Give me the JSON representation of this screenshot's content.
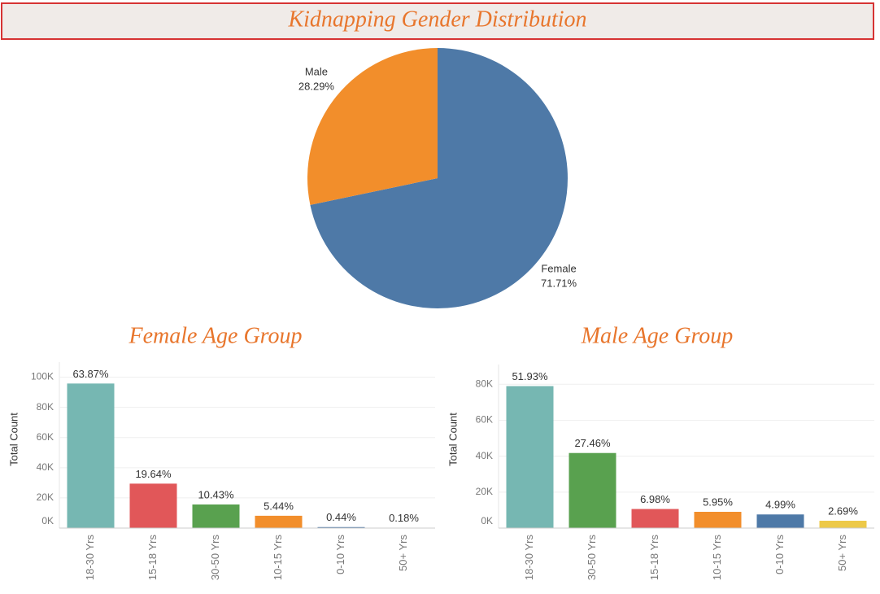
{
  "chart_data": [
    {
      "type": "pie",
      "title": "Kidnapping Gender Distribution",
      "categories": [
        "Female",
        "Male"
      ],
      "values": [
        71.71,
        28.29
      ],
      "value_labels": [
        "71.71%",
        "28.29%"
      ],
      "colors": [
        "#4e79a7",
        "#f28e2b"
      ]
    },
    {
      "type": "bar",
      "title": "Female Age Group",
      "y_label": "Total Count",
      "categories": [
        "18-30 Yrs",
        "15-18 Yrs",
        "30-50 Yrs",
        "10-15 Yrs",
        "0-10 Yrs",
        "50+ Yrs"
      ],
      "values": [
        95800,
        29460,
        15650,
        8160,
        660,
        270
      ],
      "labels": [
        "63.87%",
        "19.64%",
        "10.43%",
        "5.44%",
        "0.44%",
        "0.18%"
      ],
      "colors": [
        "#76b7b2",
        "#e15759",
        "#59a14f",
        "#f28e2b",
        "#4e79a7",
        "#edc948"
      ],
      "ylim": [
        0,
        110000
      ],
      "yticks": [
        {
          "value": 0,
          "label": "0K"
        },
        {
          "value": 20000,
          "label": "20K"
        },
        {
          "value": 40000,
          "label": "40K"
        },
        {
          "value": 60000,
          "label": "60K"
        },
        {
          "value": 80000,
          "label": "80K"
        },
        {
          "value": 100000,
          "label": "100K"
        }
      ],
      "grid": true
    },
    {
      "type": "bar",
      "title": "Male Age Group",
      "y_label": "Total Count",
      "categories": [
        "18-30 Yrs",
        "30-50 Yrs",
        "15-18 Yrs",
        "10-15 Yrs",
        "0-10 Yrs",
        "50+ Yrs"
      ],
      "values": [
        79000,
        41780,
        10620,
        9050,
        7590,
        4090
      ],
      "labels": [
        "51.93%",
        "27.46%",
        "6.98%",
        "5.95%",
        "4.99%",
        "2.69%"
      ],
      "colors": [
        "#76b7b2",
        "#59a14f",
        "#e15759",
        "#f28e2b",
        "#4e79a7",
        "#edc948"
      ],
      "ylim": [
        0,
        91000
      ],
      "yticks": [
        {
          "value": 0,
          "label": "0K"
        },
        {
          "value": 20000,
          "label": "20K"
        },
        {
          "value": 40000,
          "label": "40K"
        },
        {
          "value": 60000,
          "label": "60K"
        },
        {
          "value": 80000,
          "label": "80K"
        }
      ],
      "grid": true
    }
  ]
}
